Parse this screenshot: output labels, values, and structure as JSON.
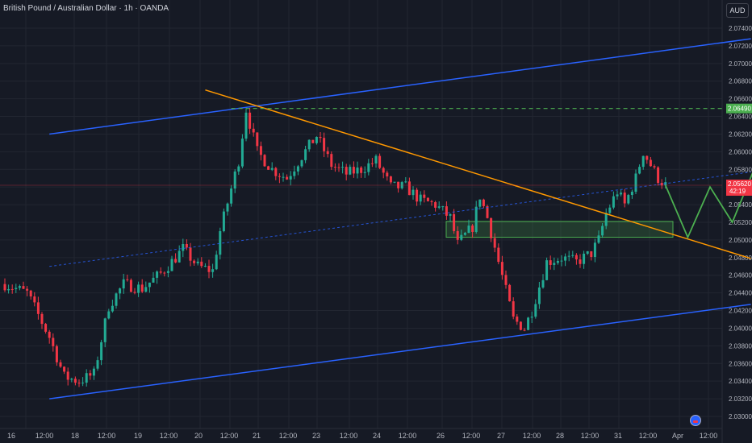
{
  "header": {
    "title": "British Pound / Australian Dollar · 1h · OANDA",
    "currency_button": "AUD"
  },
  "colors": {
    "background": "#161a25",
    "grid": "#222631",
    "up": "#22ab94",
    "down": "#f23645",
    "channel": "#2962ff",
    "trendline": "#ff9800",
    "target": "#4caf50",
    "axis_text": "#b2b5be"
  },
  "price_axis": {
    "ticks": [
      "2.07400",
      "2.07200",
      "2.07000",
      "2.06800",
      "2.06600",
      "2.06400",
      "2.06200",
      "2.06000",
      "2.05800",
      "2.05600",
      "2.05400",
      "2.05200",
      "2.05000",
      "2.04800",
      "2.04600",
      "2.04400",
      "2.04200",
      "2.04000",
      "2.03800",
      "2.03600",
      "2.03400",
      "2.03200",
      "2.03000"
    ],
    "target_label": "2.06490",
    "current_price_label": "2.05620",
    "countdown_label": "42:19"
  },
  "time_axis": {
    "labels": [
      "16",
      "12:00",
      "18",
      "12:00",
      "19",
      "12:00",
      "20",
      "12:00",
      "21",
      "12:00",
      "23",
      "12:00",
      "24",
      "12:00",
      "26",
      "12:00",
      "27",
      "12:00",
      "28",
      "12:00",
      "31",
      "12:00",
      "Apr",
      "12:00"
    ]
  },
  "icons": {
    "logo": "tradingview-logo-icon",
    "currency": "currency-selector"
  },
  "chart_data": {
    "type": "candlestick",
    "symbol": "GBPAUD",
    "ylim": [
      2.029,
      2.0755
    ],
    "last_price": 2.0562,
    "target_level": 2.0649,
    "support_zone": [
      2.0503,
      2.0521
    ],
    "path": [
      [
        0,
        2.045
      ],
      [
        6,
        2.044
      ],
      [
        12,
        2.039
      ],
      [
        16,
        2.0345
      ],
      [
        20,
        2.034
      ],
      [
        24,
        2.0348
      ],
      [
        28,
        2.0425
      ],
      [
        32,
        2.045
      ],
      [
        37,
        2.0445
      ],
      [
        42,
        2.0462
      ],
      [
        46,
        2.048
      ],
      [
        48,
        2.049
      ],
      [
        52,
        2.047
      ],
      [
        56,
        2.0465
      ],
      [
        58,
        2.051
      ],
      [
        63,
        2.059
      ],
      [
        65,
        2.0648
      ],
      [
        68,
        2.06
      ],
      [
        72,
        2.058
      ],
      [
        76,
        2.057
      ],
      [
        80,
        2.0595
      ],
      [
        84,
        2.0618
      ],
      [
        88,
        2.0585
      ],
      [
        92,
        2.0575
      ],
      [
        96,
        2.058
      ],
      [
        100,
        2.059
      ],
      [
        104,
        2.056
      ],
      [
        108,
        2.056
      ],
      [
        112,
        2.0545
      ],
      [
        116,
        2.054
      ],
      [
        120,
        2.0525
      ],
      [
        122,
        2.0495
      ],
      [
        126,
        2.0515
      ],
      [
        128,
        2.055
      ],
      [
        130,
        2.0525
      ],
      [
        133,
        2.0475
      ],
      [
        137,
        2.041
      ],
      [
        140,
        2.04
      ],
      [
        142,
        2.042
      ],
      [
        146,
        2.0475
      ],
      [
        150,
        2.048
      ],
      [
        154,
        2.0475
      ],
      [
        158,
        2.0485
      ],
      [
        160,
        2.05
      ],
      [
        162,
        2.053
      ],
      [
        165,
        2.0555
      ],
      [
        167,
        2.054
      ],
      [
        170,
        2.057
      ],
      [
        172,
        2.06
      ],
      [
        176,
        2.057
      ],
      [
        178,
        2.0562
      ]
    ],
    "n_bars": 178,
    "projection_path": [
      [
        178,
        2.0562
      ],
      [
        184,
        2.0503
      ],
      [
        190,
        2.056
      ],
      [
        196,
        2.052
      ],
      [
        208,
        2.0643
      ]
    ],
    "drawings": {
      "channel_upper": [
        [
          12,
          2.062
        ],
        [
          201,
          2.0728
        ]
      ],
      "channel_lower": [
        [
          12,
          2.032
        ],
        [
          201,
          2.0427
        ]
      ],
      "channel_mid": [
        [
          12,
          2.047
        ],
        [
          201,
          2.0577
        ]
      ],
      "trendline": [
        [
          54,
          2.067
        ],
        [
          201,
          2.0479
        ]
      ]
    }
  }
}
